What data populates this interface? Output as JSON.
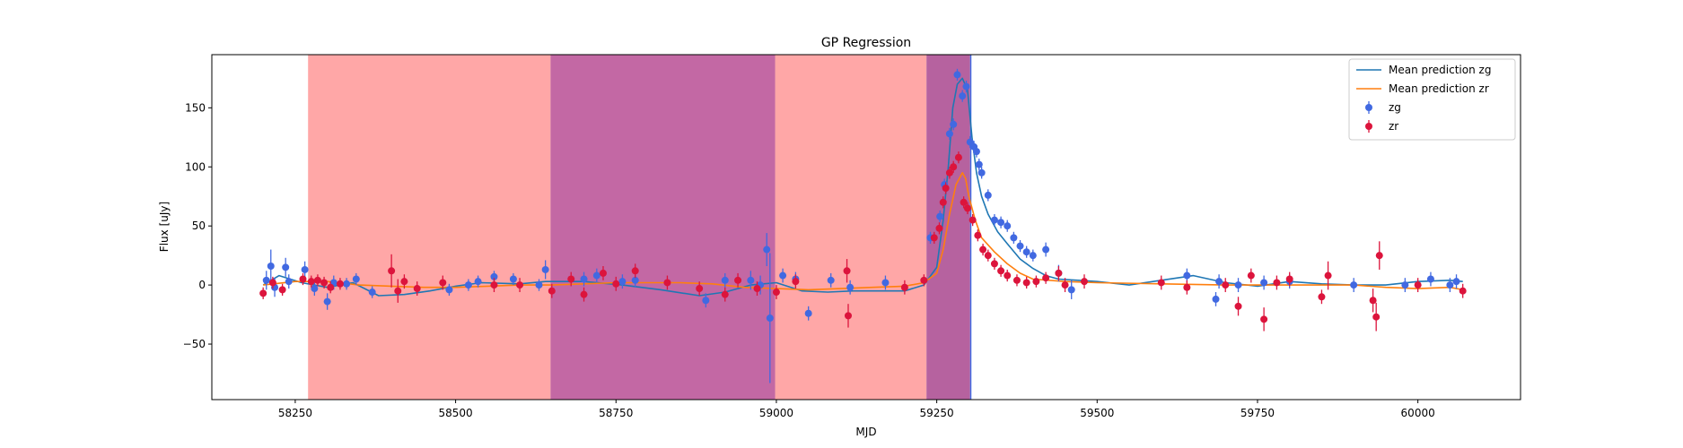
{
  "chart_data": {
    "type": "scatter",
    "title": "GP Regression",
    "xlabel": "MJD",
    "ylabel": "Flux [uJy]",
    "xlim": [
      58120,
      60160
    ],
    "ylim": [
      -97,
      195
    ],
    "xticks": [
      58250,
      58500,
      58750,
      59000,
      59250,
      59500,
      59750,
      60000
    ],
    "xtick_labels": [
      "58250",
      "58500",
      "58750",
      "59000",
      "59250",
      "59500",
      "59750",
      "60000"
    ],
    "yticks": [
      -50,
      0,
      50,
      100,
      150
    ],
    "ytick_labels": [
      "−50",
      "0",
      "50",
      "100",
      "150"
    ],
    "grid": false,
    "legend_position": "top-right",
    "legend": [
      {
        "label": "Mean prediction zg",
        "kind": "line",
        "color": "#1f77b4"
      },
      {
        "label": "Mean prediction zr",
        "kind": "line",
        "color": "#ff7f0e"
      },
      {
        "label": "zg",
        "kind": "errorbar",
        "color": "#4169e1"
      },
      {
        "label": "zr",
        "kind": "errorbar",
        "color": "#dc143c"
      }
    ],
    "shaded_regions": [
      {
        "x0": 58270,
        "x1": 58648,
        "color": "#ff5f5f",
        "opacity": 0.55
      },
      {
        "x0": 58648,
        "x1": 58998,
        "color": "#c0609f",
        "opacity": 0.95
      },
      {
        "x0": 58998,
        "x1": 59234,
        "color": "#ff5f5f",
        "opacity": 0.55
      },
      {
        "x0": 59234,
        "x1": 59302,
        "color": "#b25a9a",
        "opacity": 0.95
      }
    ],
    "vertical_lines": [
      {
        "x": 59303,
        "color": "#4169e1"
      }
    ],
    "series": [
      {
        "name": "Mean prediction zg",
        "kind": "line",
        "color": "#1f77b4",
        "x": [
          58200,
          58225,
          58260,
          58300,
          58340,
          58380,
          58420,
          58460,
          58500,
          58540,
          58600,
          58640,
          58700,
          58760,
          58820,
          58880,
          58920,
          58960,
          59000,
          59040,
          59080,
          59120,
          59160,
          59200,
          59230,
          59250,
          59260,
          59268,
          59275,
          59282,
          59290,
          59298,
          59305,
          59312,
          59320,
          59330,
          59345,
          59360,
          59380,
          59400,
          59420,
          59440,
          59470,
          59500,
          59550,
          59600,
          59650,
          59700,
          59750,
          59800,
          59850,
          59900,
          59950,
          60000,
          60050,
          60070
        ],
        "y": [
          0,
          8,
          2,
          -2,
          2,
          -9,
          -8,
          -5,
          -1,
          2,
          1,
          3,
          3,
          0,
          -4,
          -9,
          -6,
          0,
          2,
          -5,
          -6,
          -5,
          -5,
          -5,
          0,
          15,
          55,
          100,
          150,
          170,
          175,
          165,
          125,
          95,
          75,
          60,
          45,
          35,
          22,
          14,
          8,
          5,
          4,
          3,
          0,
          4,
          8,
          2,
          -1,
          3,
          1,
          0,
          0,
          3,
          4,
          3
        ]
      },
      {
        "name": "Mean prediction zr",
        "kind": "line",
        "color": "#ff7f0e",
        "x": [
          58200,
          58250,
          58300,
          58350,
          58400,
          58450,
          58500,
          58550,
          58600,
          58650,
          58700,
          58750,
          58800,
          58850,
          58900,
          58950,
          59000,
          59050,
          59100,
          59150,
          59200,
          59230,
          59250,
          59260,
          59270,
          59280,
          59290,
          59295,
          59300,
          59310,
          59320,
          59340,
          59360,
          59380,
          59400,
          59450,
          59500,
          59600,
          59700,
          59800,
          59900,
          59950,
          60000,
          60050,
          60070
        ],
        "y": [
          0,
          3,
          3,
          0,
          -1,
          -2,
          -2,
          -1,
          0,
          0,
          1,
          2,
          2,
          2,
          1,
          -2,
          -3,
          -4,
          -3,
          -2,
          -1,
          2,
          10,
          30,
          60,
          85,
          95,
          90,
          75,
          55,
          40,
          28,
          18,
          10,
          5,
          3,
          2,
          1,
          0,
          0,
          0,
          -2,
          -3,
          -2,
          -4
        ]
      },
      {
        "name": "zg",
        "kind": "errorbar",
        "color": "#4169e1",
        "x": [
          58205,
          58212,
          58218,
          58235,
          58240,
          58265,
          58280,
          58300,
          58310,
          58330,
          58345,
          58370,
          58490,
          58520,
          58535,
          58560,
          58590,
          58630,
          58640,
          58700,
          58720,
          58760,
          58780,
          58890,
          58920,
          58960,
          58975,
          58985,
          58990,
          59010,
          59030,
          59050,
          59085,
          59115,
          59170,
          59240,
          59255,
          59262,
          59270,
          59276,
          59282,
          59290,
          59296,
          59302,
          59308,
          59312,
          59316,
          59320,
          59330,
          59340,
          59350,
          59360,
          59370,
          59380,
          59390,
          59400,
          59420,
          59440,
          59460,
          59640,
          59685,
          59690,
          59720,
          59760,
          59800,
          59900,
          59980,
          60020,
          60050,
          60060
        ],
        "y": [
          4,
          16,
          -2,
          15,
          3,
          13,
          -3,
          -14,
          2,
          1,
          5,
          -6,
          -4,
          0,
          3,
          7,
          5,
          0,
          13,
          5,
          8,
          3,
          4,
          -13,
          4,
          4,
          0,
          30,
          -28,
          8,
          5,
          -24,
          4,
          -2,
          2,
          40,
          58,
          85,
          128,
          136,
          178,
          160,
          168,
          121,
          117,
          113,
          102,
          95,
          76,
          55,
          53,
          50,
          40,
          33,
          28,
          25,
          30,
          10,
          -4,
          8,
          -12,
          3,
          0,
          2,
          3,
          0,
          0,
          5,
          0,
          3
        ],
        "err": [
          8,
          14,
          8,
          8,
          6,
          7,
          6,
          7,
          6,
          5,
          5,
          5,
          5,
          5,
          5,
          5,
          5,
          5,
          8,
          6,
          6,
          6,
          6,
          6,
          6,
          8,
          8,
          14,
          55,
          6,
          6,
          6,
          6,
          6,
          6,
          5,
          5,
          5,
          5,
          5,
          5,
          5,
          5,
          5,
          5,
          5,
          5,
          5,
          5,
          5,
          5,
          5,
          5,
          5,
          5,
          5,
          6,
          7,
          8,
          6,
          6,
          6,
          6,
          6,
          6,
          6,
          6,
          6,
          6,
          6
        ]
      },
      {
        "name": "zr",
        "kind": "errorbar",
        "color": "#dc143c",
        "x": [
          58200,
          58215,
          58230,
          58262,
          58275,
          58285,
          58295,
          58305,
          58320,
          58400,
          58410,
          58420,
          58440,
          58480,
          58560,
          58600,
          58650,
          58680,
          58700,
          58730,
          58750,
          58780,
          58830,
          58880,
          58920,
          58940,
          58970,
          59000,
          59030,
          59110,
          59112,
          59200,
          59230,
          59246,
          59254,
          59260,
          59264,
          59270,
          59276,
          59284,
          59292,
          59298,
          59306,
          59314,
          59322,
          59330,
          59340,
          59350,
          59360,
          59375,
          59390,
          59405,
          59420,
          59440,
          59450,
          59480,
          59600,
          59640,
          59700,
          59720,
          59740,
          59760,
          59780,
          59800,
          59850,
          59860,
          59930,
          59935,
          59940,
          60000,
          60070
        ],
        "y": [
          -7,
          2,
          -4,
          5,
          3,
          4,
          2,
          -2,
          1,
          12,
          -5,
          3,
          -3,
          2,
          0,
          0,
          -5,
          5,
          -8,
          10,
          1,
          12,
          2,
          -3,
          -8,
          4,
          -3,
          -6,
          3,
          12,
          -26,
          -2,
          4,
          40,
          48,
          70,
          82,
          95,
          100,
          108,
          70,
          65,
          55,
          42,
          30,
          25,
          18,
          12,
          8,
          4,
          2,
          3,
          6,
          10,
          0,
          3,
          2,
          -2,
          0,
          -18,
          8,
          -29,
          2,
          5,
          -10,
          8,
          -13,
          -27,
          25,
          0,
          -5
        ],
        "err": [
          5,
          5,
          5,
          5,
          5,
          5,
          5,
          5,
          5,
          14,
          10,
          6,
          6,
          6,
          6,
          6,
          6,
          6,
          6,
          6,
          6,
          6,
          6,
          6,
          6,
          6,
          6,
          6,
          6,
          10,
          10,
          6,
          5,
          5,
          5,
          5,
          5,
          5,
          5,
          5,
          5,
          5,
          5,
          5,
          5,
          5,
          5,
          5,
          5,
          5,
          5,
          5,
          5,
          6,
          6,
          6,
          6,
          6,
          6,
          8,
          6,
          10,
          6,
          6,
          6,
          12,
          10,
          12,
          12,
          6,
          6
        ]
      }
    ]
  }
}
